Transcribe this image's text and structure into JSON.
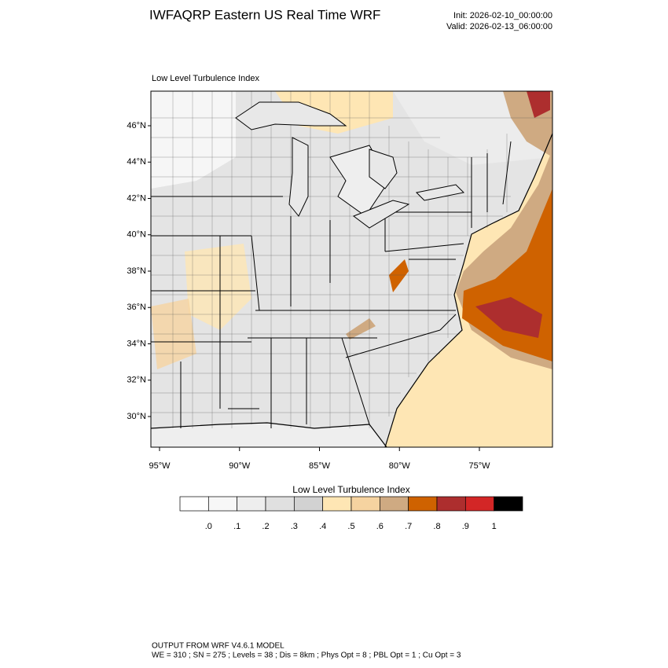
{
  "header": {
    "title": "IWFAQRP Eastern US Real Time WRF",
    "init": "Init: 2026-02-10_00:00:00",
    "valid": "Valid: 2026-02-13_06:00:00"
  },
  "map": {
    "title": "Low Level Turbulence Index",
    "lat_labels": [
      "46°N",
      "44°N",
      "42°N",
      "40°N",
      "38°N",
      "36°N",
      "34°N",
      "32°N",
      "30°N"
    ],
    "lon_labels": [
      "95°W",
      "90°W",
      "85°W",
      "80°W",
      "75°W"
    ]
  },
  "colorbar": {
    "title": "Low Level Turbulence Index",
    "colors": [
      "#ffffff",
      "#f7f7f7",
      "#eeeeee",
      "#e0e0e0",
      "#d2d2d2",
      "#fee6b4",
      "#f6d3a0",
      "#cfaa82",
      "#cf6200",
      "#ad2e2e",
      "#d32626",
      "#000000"
    ],
    "labels": [
      ".0",
      ".1",
      ".2",
      ".3",
      ".4",
      ".5",
      ".6",
      ".7",
      ".8",
      ".9",
      "1"
    ]
  },
  "footer": {
    "line1": "OUTPUT FROM WRF V4.6.1 MODEL",
    "line2": "WE = 310 ; SN = 275 ; Levels = 38 ; Dis = 8km ; Phys Opt = 8 ; PBL Opt = 1 ; Cu Opt = 3"
  }
}
